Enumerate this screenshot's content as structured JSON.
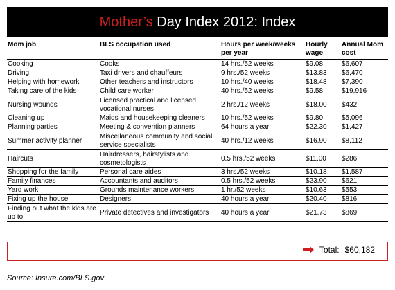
{
  "header": {
    "title_highlight": "Mother’s",
    "title_rest": " Day Index 2012: Index"
  },
  "table": {
    "columns": {
      "mom_job": "Mom job",
      "bls_occupation": "BLS occupation used",
      "hours": "Hours per week/weeks per year",
      "hourly_wage": "Hourly wage",
      "annual_mom_cost": "Annual Mom cost"
    },
    "rows": [
      {
        "mom_job": "Cooking",
        "bls": "Cooks",
        "hours": "14 hrs./52 weeks",
        "wage": "$9.08",
        "annual": "$6,607"
      },
      {
        "mom_job": "Driving",
        "bls": "Taxi drivers and chauffeurs",
        "hours": "9 hrs./52 weeks",
        "wage": "$13.83",
        "annual": "$6,470"
      },
      {
        "mom_job": "Helping with homework",
        "bls": "Other teachers and instructors",
        "hours": "10 hrs./40 weeks",
        "wage": "$18.48",
        "annual": "$7,390"
      },
      {
        "mom_job": "Taking care of the kids",
        "bls": "Child care worker",
        "hours": "40 hrs./52 weeks",
        "wage": "$9.58",
        "annual": "$19,916"
      },
      {
        "mom_job": "Nursing wounds",
        "bls": "Licensed practical and licensed vocational nurses",
        "hours": "2 hrs./12 weeks",
        "wage": "$18.00",
        "annual": "$432"
      },
      {
        "mom_job": "Cleaning up",
        "bls": "Maids and housekeeping cleaners",
        "hours": "10 hrs./52 weeks",
        "wage": "$9.80",
        "annual": "$5,096"
      },
      {
        "mom_job": "Planning parties",
        "bls": "Meeting & convention planners",
        "hours": "64 hours a year",
        "wage": "$22.30",
        "annual": "$1,427"
      },
      {
        "mom_job": "Summer activity planner",
        "bls": "Miscellaneous community and social service specialists",
        "hours": "40 hrs./12 weeks",
        "wage": "$16.90",
        "annual": "$8,112"
      },
      {
        "mom_job": "Haircuts",
        "bls": "Hairdressers, hairstylists and cosmetologists",
        "hours": "0.5 hrs./52 weeks",
        "wage": "$11.00",
        "annual": "$286"
      },
      {
        "mom_job": "Shopping for the family",
        "bls": "Personal care aides",
        "hours": "3 hrs./52 weeks",
        "wage": "$10.18",
        "annual": "$1,587"
      },
      {
        "mom_job": "Family finances",
        "bls": "Accountants and auditors",
        "hours": "0.5 hrs./52 weeks",
        "wage": "$23.90",
        "annual": "$621"
      },
      {
        "mom_job": "Yard work",
        "bls": "Grounds maintenance workers",
        "hours": "1 hr./52 weeks",
        "wage": "$10.63",
        "annual": "$553"
      },
      {
        "mom_job": "Fixing up the house",
        "bls": "Designers",
        "hours": "40 hours a year",
        "wage": "$20.40",
        "annual": "$816"
      },
      {
        "mom_job": "Finding out what the kids are up to",
        "bls": "Private detectives and investigators",
        "hours": "40 hours a year",
        "wage": "$21.73",
        "annual": "$869"
      }
    ]
  },
  "total": {
    "label": "Total:",
    "value": "$60,182"
  },
  "source": "Source: Insure.com/BLS.gov",
  "colors": {
    "accent": "#cc1f1f",
    "header_bg": "#000000"
  }
}
